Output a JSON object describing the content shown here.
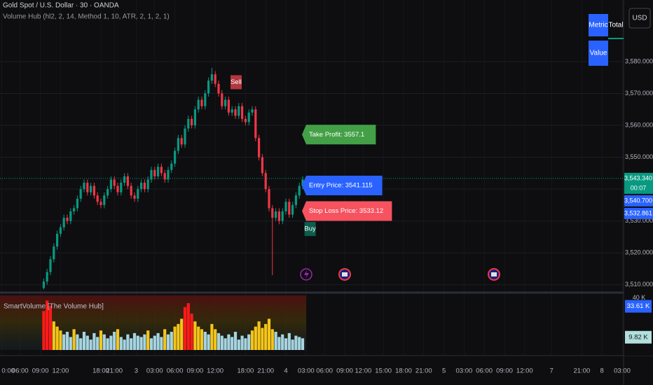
{
  "header": {
    "symbol": "Gold Spot / U.S. Dollar · 30 · OANDA",
    "indicator": "Volume Hub (hl2, 2, 14, Method 1, 10, ATR, 2, 1, 2, 1)",
    "currency": "USD"
  },
  "widget": {
    "headers": [
      "Metric",
      "Total"
    ],
    "rows": [
      [
        "Value"
      ]
    ]
  },
  "chart_data": {
    "type": "candlestick",
    "up_color": "#089981",
    "down_color": "#f23645",
    "grid": true,
    "xlim": [
      -13,
      172
    ],
    "xticks": [
      {
        "value": -12.5,
        "label": "0:00"
      },
      {
        "value": -7,
        "label": "06:00"
      },
      {
        "value": -1,
        "label": "09:00"
      },
      {
        "value": 5,
        "label": "12:00"
      },
      {
        "value": 17,
        "label": "18:00"
      },
      {
        "value": 21,
        "label": "21:00"
      },
      {
        "value": 27.5,
        "label": "3"
      },
      {
        "value": 33,
        "label": "03:00"
      },
      {
        "value": 39,
        "label": "06:00"
      },
      {
        "value": 45,
        "label": "09:00"
      },
      {
        "value": 51,
        "label": "12:00"
      },
      {
        "value": 60,
        "label": "18:00"
      },
      {
        "value": 66,
        "label": "21:00"
      },
      {
        "value": 72,
        "label": "4"
      },
      {
        "value": 78,
        "label": "03:00"
      },
      {
        "value": 83.5,
        "label": "06:00"
      },
      {
        "value": 89.5,
        "label": "09:00"
      },
      {
        "value": 95,
        "label": "12:00"
      },
      {
        "value": 101,
        "label": "15:00"
      },
      {
        "value": 107,
        "label": "18:00"
      },
      {
        "value": 113,
        "label": "21:00"
      },
      {
        "value": 119,
        "label": "5"
      },
      {
        "value": 125,
        "label": "03:00"
      },
      {
        "value": 131,
        "label": "06:00"
      },
      {
        "value": 137,
        "label": "09:00"
      },
      {
        "value": 143,
        "label": "12:00"
      },
      {
        "value": 151,
        "label": "7"
      },
      {
        "value": 160,
        "label": "21:00"
      },
      {
        "value": 166,
        "label": "8"
      },
      {
        "value": 172,
        "label": "03:00"
      }
    ],
    "ylim": [
      3508.2,
      3599.3
    ],
    "yticks": [
      {
        "value": 3510,
        "label": "3,510.000"
      },
      {
        "value": 3520,
        "label": "3,520.000"
      },
      {
        "value": 3530,
        "label": "3,530.000"
      },
      {
        "value": 3540,
        "label": "3,540.000"
      },
      {
        "value": 3550,
        "label": "3,550.000"
      },
      {
        "value": 3560,
        "label": "3,560.000"
      },
      {
        "value": 3570,
        "label": "3,570.000"
      },
      {
        "value": 3580,
        "label": "3,580.000"
      }
    ],
    "open": [
      3509,
      3511,
      3514,
      3518,
      3522,
      3526,
      3528,
      3531,
      3530,
      3533,
      3534,
      3537,
      3540,
      3542,
      3539,
      3541,
      3538,
      3536,
      3535,
      3538,
      3540,
      3543,
      3541,
      3539,
      3542,
      3544,
      3541,
      3538,
      3537,
      3540,
      3542,
      3540,
      3543,
      3546,
      3544,
      3547,
      3545,
      3543,
      3546,
      3548,
      3552,
      3556,
      3554,
      3559,
      3562,
      3560,
      3565,
      3568,
      3566,
      3570,
      3574,
      3576,
      3573,
      3570,
      3566,
      3568,
      3564,
      3565,
      3563,
      3566,
      3562,
      3561,
      3564,
      3565,
      3556,
      3550,
      3545,
      3540,
      3534,
      3531,
      3533,
      3530,
      3533,
      3536,
      3532,
      3535,
      3538,
      3541
    ],
    "high": [
      3512,
      3515,
      3519,
      3523,
      3527,
      3529,
      3532,
      3532,
      3534,
      3535,
      3538,
      3541,
      3543,
      3543,
      3542,
      3542,
      3539,
      3537,
      3539,
      3541,
      3544,
      3544,
      3542,
      3543,
      3545,
      3545,
      3542,
      3539,
      3541,
      3543,
      3543,
      3544,
      3547,
      3547,
      3548,
      3548,
      3546,
      3547,
      3549,
      3553,
      3557,
      3557,
      3560,
      3563,
      3563,
      3566,
      3569,
      3569,
      3571,
      3575,
      3578,
      3577,
      3574,
      3571,
      3569,
      3569,
      3566,
      3566,
      3567,
      3567,
      3563,
      3565,
      3566,
      3566,
      3557,
      3551,
      3546,
      3541,
      3535,
      3534,
      3534,
      3534,
      3537,
      3537,
      3536,
      3539,
      3542,
      3544
    ],
    "low": [
      3508.5,
      3510,
      3513,
      3517,
      3521,
      3525,
      3527,
      3529,
      3529,
      3532,
      3533,
      3536,
      3539,
      3538,
      3538,
      3537,
      3535,
      3534,
      3534,
      3537,
      3539,
      3540,
      3538,
      3538,
      3541,
      3540,
      3537,
      3536,
      3536,
      3539,
      3539,
      3539,
      3542,
      3543,
      3543,
      3544,
      3542,
      3542,
      3545,
      3547,
      3551,
      3553,
      3553,
      3558,
      3559,
      3559,
      3564,
      3565,
      3565,
      3569,
      3573,
      3572,
      3569,
      3565,
      3565,
      3563,
      3563,
      3562,
      3562,
      3561,
      3560,
      3560,
      3563,
      3555,
      3549,
      3544,
      3539,
      3533,
      3513,
      3530,
      3529,
      3529,
      3532,
      3531,
      3531,
      3534,
      3537,
      3540
    ],
    "close": [
      3511,
      3514,
      3518,
      3522,
      3526,
      3528,
      3531,
      3530,
      3533,
      3534,
      3537,
      3540,
      3542,
      3539,
      3541,
      3538,
      3536,
      3535,
      3538,
      3540,
      3543,
      3541,
      3539,
      3542,
      3544,
      3541,
      3538,
      3537,
      3540,
      3542,
      3540,
      3543,
      3546,
      3544,
      3547,
      3545,
      3543,
      3546,
      3548,
      3552,
      3556,
      3554,
      3559,
      3562,
      3560,
      3565,
      3568,
      3566,
      3570,
      3574,
      3576,
      3573,
      3570,
      3566,
      3568,
      3564,
      3565,
      3563,
      3566,
      3562,
      3561,
      3564,
      3565,
      3556,
      3550,
      3545,
      3540,
      3534,
      3531,
      3533,
      3530,
      3533,
      3536,
      3532,
      3535,
      3538,
      3541,
      3543
    ],
    "signals": [
      {
        "label": "Sell",
        "color": "#b2373f"
      },
      {
        "label": "Buy",
        "color": "#0b5e4c"
      }
    ],
    "levels": [
      {
        "label": "Take Profit: 3557.1",
        "value": 3557.1,
        "color": "#43a047"
      },
      {
        "label": "Entry Price: 3541.115",
        "value": 3541.115,
        "color": "#2962ff"
      },
      {
        "label": "Stop Loss Price: 3533.12",
        "value": 3533.12,
        "color": "#f7525f"
      }
    ],
    "price_labels": [
      {
        "value": 3543.34,
        "label": "3,543.340",
        "countdown": "00:07",
        "color": "#089981"
      },
      {
        "value": 3540.7,
        "label": "3,540.700",
        "color": "#2962ff"
      },
      {
        "value": 3532.861,
        "label": "3,532.861",
        "color": "#2962ff"
      }
    ],
    "volume": {
      "name": "SmartVolume [The Volume Hub]",
      "ylim": [
        0,
        42
      ],
      "yticks": [
        {
          "value": 40,
          "label": "40 K"
        }
      ],
      "values": [
        30,
        38,
        34,
        22,
        18,
        15,
        12,
        14,
        10,
        16,
        12,
        9,
        14,
        11,
        8,
        13,
        10,
        15,
        12,
        9,
        11,
        14,
        16,
        10,
        8,
        12,
        9,
        13,
        11,
        10,
        12,
        15,
        9,
        11,
        13,
        10,
        16,
        12,
        14,
        18,
        20,
        24,
        33,
        36,
        28,
        22,
        18,
        16,
        14,
        12,
        20,
        16,
        13,
        11,
        9,
        12,
        10,
        14,
        8,
        11,
        9,
        12,
        15,
        18,
        22,
        17,
        20,
        24,
        16,
        14,
        10,
        12,
        9,
        13,
        8,
        11,
        10,
        9
      ],
      "colors": [
        "#ff1a1a",
        "#ff1a1a",
        "#ff1a1a",
        "#f5c518",
        "#f5c518",
        "#f5c518",
        "#a6d4e0",
        "#a6d4e0",
        "#a6d4e0",
        "#f5c518",
        "#a6d4e0",
        "#a6d4e0",
        "#a6d4e0",
        "#a6d4e0",
        "#a6d4e0",
        "#a6d4e0",
        "#a6d4e0",
        "#f5c518",
        "#a6d4e0",
        "#a6d4e0",
        "#a6d4e0",
        "#a6d4e0",
        "#f5c518",
        "#a6d4e0",
        "#a6d4e0",
        "#a6d4e0",
        "#a6d4e0",
        "#a6d4e0",
        "#a6d4e0",
        "#a6d4e0",
        "#a6d4e0",
        "#f5c518",
        "#a6d4e0",
        "#a6d4e0",
        "#a6d4e0",
        "#a6d4e0",
        "#f5c518",
        "#a6d4e0",
        "#a6d4e0",
        "#f5c518",
        "#f5c518",
        "#f5c518",
        "#ff1a1a",
        "#ff1a1a",
        "#ff1a1a",
        "#f5c518",
        "#f5c518",
        "#f5c518",
        "#a6d4e0",
        "#a6d4e0",
        "#f5c518",
        "#f5c518",
        "#a6d4e0",
        "#a6d4e0",
        "#a6d4e0",
        "#a6d4e0",
        "#a6d4e0",
        "#a6d4e0",
        "#a6d4e0",
        "#a6d4e0",
        "#a6d4e0",
        "#a6d4e0",
        "#f5c518",
        "#f5c518",
        "#f5c518",
        "#f5c518",
        "#f5c518",
        "#f5c518",
        "#f5c518",
        "#a6d4e0",
        "#a6d4e0",
        "#a6d4e0",
        "#a6d4e0",
        "#a6d4e0",
        "#a6d4e0",
        "#a6d4e0",
        "#a6d4e0",
        "#a6d4e0"
      ],
      "value_labels": [
        {
          "value": 33.61,
          "label": "33.61 K",
          "color": "#2962ff"
        },
        {
          "value": 9.82,
          "label": "9.82 K",
          "color": "#b2dfdb"
        }
      ]
    }
  }
}
